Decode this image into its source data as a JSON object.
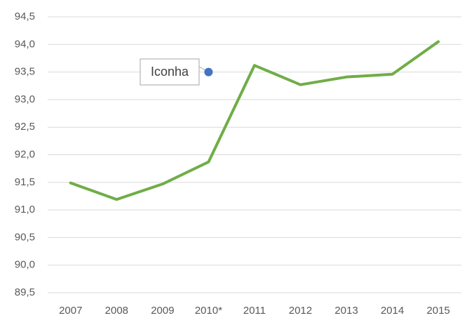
{
  "chart_data": {
    "type": "line",
    "categories": [
      "2007",
      "2008",
      "2009",
      "2010*",
      "2011",
      "2012",
      "2013",
      "2014",
      "2015"
    ],
    "series": [
      {
        "name": "Iconha",
        "color": "#70ad47",
        "values": [
          91.49,
          91.19,
          91.47,
          91.87,
          93.62,
          93.27,
          93.41,
          93.46,
          94.05
        ]
      }
    ],
    "ylim": [
      89.5,
      94.5
    ],
    "yticks": [
      {
        "value": 89.5,
        "label": "89,5"
      },
      {
        "value": 90,
        "label": "90,0"
      },
      {
        "value": 90.5,
        "label": "90,5"
      },
      {
        "value": 91,
        "label": "91,0"
      },
      {
        "value": 91.5,
        "label": "91,5"
      },
      {
        "value": 92,
        "label": "92,0"
      },
      {
        "value": 92.5,
        "label": "92,5"
      },
      {
        "value": 93,
        "label": "93,0"
      },
      {
        "value": 93.5,
        "label": "93,5"
      },
      {
        "value": 94,
        "label": "94,0"
      },
      {
        "value": 94.5,
        "label": "94,5"
      }
    ],
    "grid": true,
    "annotation": {
      "text": "Iconha",
      "x": "2010*",
      "y": 93.5,
      "color": "#4472c4"
    }
  }
}
